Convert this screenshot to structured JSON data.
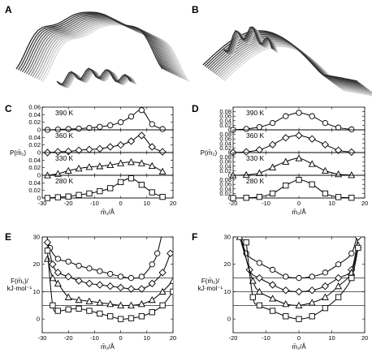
{
  "panel_letters": [
    "A",
    "B",
    "C",
    "D",
    "E",
    "F"
  ],
  "structures": {
    "A": {
      "description_icon": "molecular-structure-ribbon-bent"
    },
    "B": {
      "description_icon": "molecular-structure-ribbon-twisted"
    }
  },
  "chart_data": [
    {
      "id": "C",
      "type": "line",
      "xlabel": "m̄₁/Å",
      "ylabel": "P(m̄₁)",
      "xlim": [
        -30,
        20
      ],
      "xticks": [
        -30,
        -20,
        -10,
        0,
        10,
        20
      ],
      "xtick_labels": [
        "-30",
        "-20",
        "-10",
        "0",
        "10",
        "20"
      ],
      "subpanels": [
        {
          "temp": "390 K",
          "marker": "circle",
          "ylim": [
            0,
            0.06
          ],
          "yticks": [
            0,
            0.02,
            0.04,
            0.06
          ],
          "ytick_labels": [
            "0",
            "0.02",
            "0.04",
            "0.06"
          ],
          "x": [
            -28,
            -24,
            -20,
            -16,
            -12,
            -8,
            -4,
            0,
            4,
            8,
            12,
            16
          ],
          "y": [
            0,
            0.001,
            0.002,
            0.003,
            0.005,
            0.008,
            0.012,
            0.02,
            0.035,
            0.052,
            0.015,
            0.002
          ]
        },
        {
          "temp": "360 K",
          "marker": "diamond",
          "ylim": [
            0,
            0.06
          ],
          "yticks": [
            0,
            0.02,
            0.04
          ],
          "ytick_labels": [
            "0",
            "0.02",
            "0.04"
          ],
          "x": [
            -28,
            -24,
            -20,
            -16,
            -12,
            -8,
            -4,
            0,
            4,
            8,
            12,
            16
          ],
          "y": [
            0,
            0.002,
            0.003,
            0.006,
            0.008,
            0.01,
            0.015,
            0.02,
            0.03,
            0.045,
            0.015,
            0.002
          ]
        },
        {
          "temp": "330 K",
          "marker": "triangle",
          "ylim": [
            0,
            0.06
          ],
          "yticks": [
            0,
            0.02,
            0.04
          ],
          "ytick_labels": [
            "0",
            "0.02",
            "0.04"
          ],
          "x": [
            -28,
            -24,
            -20,
            -16,
            -12,
            -8,
            -4,
            0,
            4,
            8,
            12,
            16
          ],
          "y": [
            0,
            0.004,
            0.012,
            0.018,
            0.022,
            0.024,
            0.027,
            0.032,
            0.035,
            0.032,
            0.025,
            0.01
          ]
        },
        {
          "temp": "280 K",
          "marker": "square",
          "ylim": [
            0,
            0.06
          ],
          "yticks": [
            0,
            0.02,
            0.04
          ],
          "ytick_labels": [
            "0",
            "0.02",
            "0.04"
          ],
          "x": [
            -28,
            -24,
            -20,
            -16,
            -12,
            -8,
            -4,
            0,
            4,
            8,
            12,
            16
          ],
          "y": [
            0,
            0.002,
            0.004,
            0.008,
            0.012,
            0.018,
            0.026,
            0.042,
            0.052,
            0.035,
            0.015,
            0.003
          ]
        }
      ]
    },
    {
      "id": "D",
      "type": "line",
      "xlabel": "m̄₂/Å",
      "ylabel": "P(m̄₂)",
      "xlim": [
        -20,
        20
      ],
      "xticks": [
        -20,
        -10,
        0,
        10,
        20
      ],
      "xtick_labels": [
        "-20",
        "-10",
        "0",
        "10",
        "20"
      ],
      "subpanels": [
        {
          "temp": "390 K",
          "marker": "circle",
          "ylim": [
            0,
            0.1
          ],
          "yticks": [
            0,
            0.02,
            0.04,
            0.06,
            0.08
          ],
          "ytick_labels": [
            "0",
            "0.02",
            "0.04",
            "0.06",
            "0.08"
          ],
          "x": [
            -20,
            -16,
            -12,
            -8,
            -4,
            0,
            4,
            8,
            12,
            16
          ],
          "y": [
            0,
            0.004,
            0.012,
            0.03,
            0.06,
            0.075,
            0.06,
            0.03,
            0.01,
            0.002
          ]
        },
        {
          "temp": "360 K",
          "marker": "diamond",
          "ylim": [
            0,
            0.1
          ],
          "yticks": [
            0,
            0.02,
            0.04,
            0.06,
            0.08
          ],
          "ytick_labels": [
            "0",
            "0.02",
            "0.04",
            "0.06",
            "0.08"
          ],
          "x": [
            -20,
            -16,
            -12,
            -8,
            -4,
            0,
            4,
            8,
            12,
            16
          ],
          "y": [
            0,
            0.003,
            0.012,
            0.035,
            0.065,
            0.075,
            0.06,
            0.035,
            0.01,
            0.002
          ]
        },
        {
          "temp": "330 K",
          "marker": "triangle",
          "ylim": [
            0,
            0.1
          ],
          "yticks": [
            0,
            0.02,
            0.04,
            0.06,
            0.08
          ],
          "ytick_labels": [
            "0",
            "0.02",
            "0.04",
            "0.06",
            "0.08"
          ],
          "x": [
            -20,
            -16,
            -12,
            -8,
            -4,
            0,
            4,
            8,
            12,
            16
          ],
          "y": [
            0,
            0.002,
            0.01,
            0.035,
            0.06,
            0.075,
            0.05,
            0.02,
            0.005,
            0.001
          ]
        },
        {
          "temp": "280 K",
          "marker": "square",
          "ylim": [
            0,
            0.1
          ],
          "yticks": [
            0,
            0.02,
            0.04,
            0.06,
            0.08
          ],
          "ytick_labels": [
            "0",
            "0.02",
            "0.04",
            "0.06",
            "0.08"
          ],
          "x": [
            -20,
            -16,
            -12,
            -8,
            -4,
            0,
            4,
            8,
            12,
            16
          ],
          "y": [
            0,
            0.001,
            0.005,
            0.02,
            0.055,
            0.08,
            0.06,
            0.02,
            0.004,
            0.001
          ]
        }
      ]
    },
    {
      "id": "E",
      "type": "line",
      "xlabel": "m̄₁/Å",
      "ylabel": "F(m̄₁)/ kJ·mol⁻¹",
      "xlim": [
        -30,
        20
      ],
      "ylim": [
        -5,
        30
      ],
      "xticks": [
        -30,
        -20,
        -10,
        0,
        10,
        20
      ],
      "xtick_labels": [
        "-30",
        "-20",
        "-10",
        "0",
        "10",
        "20"
      ],
      "yticks": [
        0,
        10,
        20,
        30
      ],
      "ytick_labels": [
        "0",
        "10",
        "20",
        "30"
      ],
      "hlines": [
        5,
        10,
        15
      ],
      "series": [
        {
          "marker": "circle",
          "x": [
            -29,
            -27,
            -24,
            -20,
            -16,
            -12,
            -8,
            -4,
            0,
            4,
            8,
            12,
            14,
            16
          ],
          "y": [
            34,
            26,
            22,
            21,
            19.5,
            18.5,
            17.5,
            16.5,
            15.5,
            15,
            15.5,
            20,
            24,
            32
          ]
        },
        {
          "marker": "diamond",
          "x": [
            -28,
            -26,
            -24,
            -20,
            -16,
            -12,
            -8,
            -4,
            0,
            4,
            8,
            12,
            16,
            19
          ],
          "y": [
            28,
            20,
            17,
            15.5,
            14,
            13,
            12.5,
            12,
            11.5,
            11,
            11,
            13,
            17,
            24
          ]
        },
        {
          "marker": "triangle",
          "x": [
            -28,
            -26,
            -24,
            -20,
            -16,
            -12,
            -8,
            -4,
            0,
            4,
            8,
            12,
            16,
            20
          ],
          "y": [
            22,
            15,
            13,
            8,
            7,
            6.5,
            6,
            5.5,
            5,
            5,
            5.5,
            7,
            10,
            14
          ]
        },
        {
          "marker": "square",
          "x": [
            -28,
            -26,
            -24,
            -20,
            -16,
            -12,
            -8,
            -4,
            0,
            4,
            8,
            12,
            16,
            20
          ],
          "y": [
            25,
            5,
            3,
            3.5,
            3.8,
            3,
            2,
            1,
            0,
            0.3,
            1,
            2.5,
            5,
            10
          ]
        }
      ]
    },
    {
      "id": "F",
      "type": "line",
      "xlabel": "m̄₂/Å",
      "ylabel": "F(m̄₂)/ kJ·mol⁻¹",
      "xlim": [
        -20,
        20
      ],
      "ylim": [
        -5,
        30
      ],
      "xticks": [
        -20,
        -10,
        0,
        10,
        20
      ],
      "xtick_labels": [
        "-20",
        "-10",
        "0",
        "10",
        "20"
      ],
      "yticks": [
        0,
        10,
        20,
        30
      ],
      "ytick_labels": [
        "0",
        "10",
        "20",
        "30"
      ],
      "hlines": [
        5,
        10,
        15
      ],
      "series": [
        {
          "marker": "circle",
          "x": [
            -18,
            -16,
            -12,
            -8,
            -4,
            0,
            4,
            8,
            12,
            16,
            18
          ],
          "y": [
            32,
            24,
            20.5,
            18,
            15.5,
            15,
            15.5,
            17,
            20,
            24,
            32
          ]
        },
        {
          "marker": "diamond",
          "x": [
            -18,
            -15,
            -12,
            -8,
            -4,
            0,
            4,
            8,
            12,
            16,
            18
          ],
          "y": [
            32,
            18,
            15,
            12.5,
            10.5,
            10,
            10.5,
            12,
            15,
            18,
            30
          ]
        },
        {
          "marker": "triangle",
          "x": [
            -18,
            -14,
            -12,
            -8,
            -4,
            0,
            4,
            8,
            12,
            16,
            18
          ],
          "y": [
            30,
            14,
            10,
            7.5,
            5.5,
            5,
            6,
            8,
            12,
            17,
            27
          ]
        },
        {
          "marker": "square",
          "x": [
            -16,
            -14,
            -12,
            -8,
            -4,
            0,
            4,
            8,
            12,
            16,
            18
          ],
          "y": [
            28,
            8,
            5,
            3,
            1,
            0,
            1,
            4,
            8,
            15,
            26
          ]
        }
      ]
    }
  ]
}
